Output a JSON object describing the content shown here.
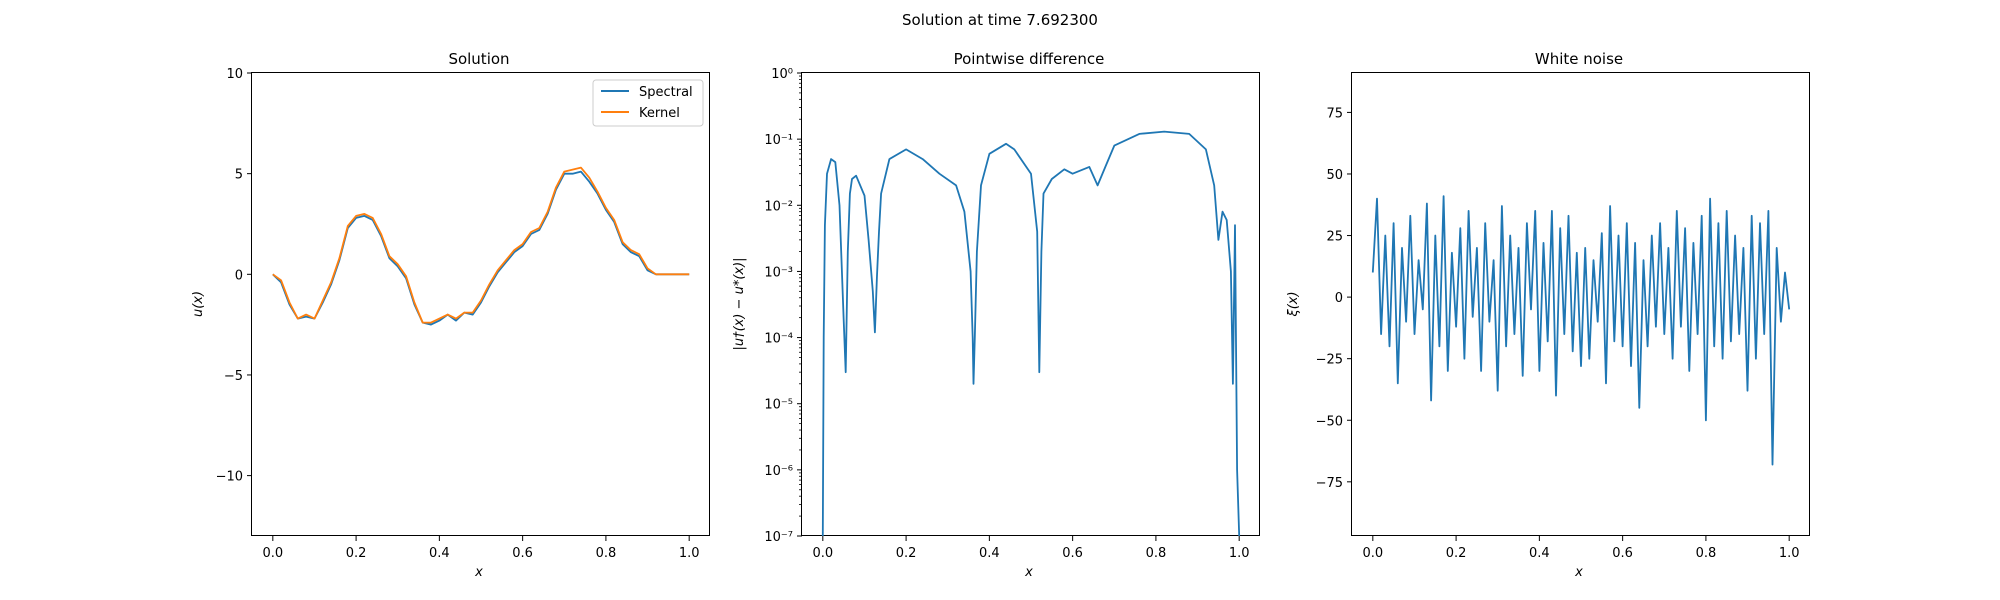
{
  "suptitle": "Solution at time 7.692300",
  "chart_data": [
    {
      "type": "line",
      "title": "Solution",
      "xlabel": "x",
      "ylabel": "u(x)",
      "xlim": [
        -0.05,
        1.05
      ],
      "ylim": [
        -13.0,
        10.0
      ],
      "x_ticks": [
        0.0,
        0.2,
        0.4,
        0.6,
        0.8,
        1.0
      ],
      "x_tick_labels": [
        "0.0",
        "0.2",
        "0.4",
        "0.6",
        "0.8",
        "1.0"
      ],
      "y_ticks": [
        10,
        5,
        0,
        -5,
        -10
      ],
      "y_tick_labels": [
        "10",
        "5",
        "0",
        "−5",
        "−10"
      ],
      "grid": false,
      "legend": {
        "position": "top-right",
        "entries": [
          "Spectral",
          "Kernel"
        ]
      },
      "x": [
        0.0,
        0.02,
        0.04,
        0.06,
        0.08,
        0.1,
        0.12,
        0.14,
        0.16,
        0.18,
        0.2,
        0.22,
        0.24,
        0.26,
        0.28,
        0.3,
        0.32,
        0.34,
        0.36,
        0.38,
        0.4,
        0.42,
        0.44,
        0.46,
        0.48,
        0.5,
        0.52,
        0.54,
        0.56,
        0.58,
        0.6,
        0.62,
        0.64,
        0.66,
        0.68,
        0.7,
        0.72,
        0.74,
        0.76,
        0.78,
        0.8,
        0.82,
        0.84,
        0.86,
        0.88,
        0.9,
        0.92,
        0.94,
        0.96,
        0.98,
        1.0
      ],
      "series": [
        {
          "name": "Spectral",
          "color": "#1f77b4",
          "values": [
            0.0,
            -0.4,
            -1.5,
            -2.2,
            -2.1,
            -2.2,
            -1.4,
            -0.5,
            0.7,
            2.3,
            2.8,
            2.9,
            2.7,
            1.9,
            0.8,
            0.4,
            -0.2,
            -1.5,
            -2.4,
            -2.5,
            -2.3,
            -2.0,
            -2.3,
            -1.9,
            -2.0,
            -1.4,
            -0.6,
            0.1,
            0.6,
            1.1,
            1.4,
            2.0,
            2.2,
            3.0,
            4.2,
            5.0,
            5.0,
            5.1,
            4.6,
            4.0,
            3.2,
            2.6,
            1.5,
            1.1,
            0.9,
            0.2,
            0.0,
            0.0,
            0.0,
            0.0,
            0.0
          ]
        },
        {
          "name": "Kernel",
          "color": "#ff7f0e",
          "values": [
            0.0,
            -0.3,
            -1.4,
            -2.2,
            -2.0,
            -2.2,
            -1.3,
            -0.4,
            0.8,
            2.4,
            2.9,
            3.0,
            2.8,
            2.0,
            0.9,
            0.5,
            -0.1,
            -1.4,
            -2.4,
            -2.4,
            -2.2,
            -2.0,
            -2.2,
            -1.9,
            -1.9,
            -1.3,
            -0.5,
            0.2,
            0.7,
            1.2,
            1.5,
            2.1,
            2.3,
            3.1,
            4.3,
            5.1,
            5.2,
            5.3,
            4.8,
            4.1,
            3.3,
            2.7,
            1.6,
            1.2,
            1.0,
            0.3,
            0.0,
            0.0,
            0.0,
            0.0,
            0.0
          ]
        }
      ]
    },
    {
      "type": "line",
      "title": "Pointwise difference",
      "xlabel": "x",
      "ylabel": "|u†(x) − u*(x)|",
      "yscale": "log",
      "xlim": [
        -0.05,
        1.05
      ],
      "ylim": [
        1e-07,
        1
      ],
      "x_ticks": [
        0.0,
        0.2,
        0.4,
        0.6,
        0.8,
        1.0
      ],
      "x_tick_labels": [
        "0.0",
        "0.2",
        "0.4",
        "0.6",
        "0.8",
        "1.0"
      ],
      "y_ticks": [
        1,
        0.1,
        0.01,
        0.001,
        0.0001,
        1e-05,
        1e-06,
        1e-07
      ],
      "y_tick_labels": [
        "10⁰",
        "10⁻¹",
        "10⁻²",
        "10⁻³",
        "10⁻⁴",
        "10⁻⁵",
        "10⁻⁶",
        "10⁻⁷"
      ],
      "grid": false,
      "series": [
        {
          "name": "",
          "color": "#1f77b4",
          "x": [
            0.0,
            0.002,
            0.005,
            0.01,
            0.02,
            0.03,
            0.04,
            0.05,
            0.055,
            0.06,
            0.065,
            0.07,
            0.08,
            0.1,
            0.11,
            0.12,
            0.125,
            0.13,
            0.135,
            0.14,
            0.16,
            0.2,
            0.24,
            0.28,
            0.32,
            0.34,
            0.355,
            0.36,
            0.362,
            0.365,
            0.37,
            0.38,
            0.4,
            0.44,
            0.46,
            0.5,
            0.515,
            0.52,
            0.525,
            0.53,
            0.55,
            0.58,
            0.6,
            0.64,
            0.66,
            0.68,
            0.7,
            0.76,
            0.82,
            0.88,
            0.92,
            0.94,
            0.95,
            0.96,
            0.97,
            0.98,
            0.985,
            0.99,
            0.995,
            1.0
          ],
          "values": [
            1e-07,
            0.0001,
            0.005,
            0.03,
            0.05,
            0.045,
            0.01,
            0.0002,
            3e-05,
            0.002,
            0.015,
            0.025,
            0.028,
            0.014,
            0.003,
            0.0005,
            0.00012,
            0.0008,
            0.004,
            0.015,
            0.05,
            0.07,
            0.05,
            0.03,
            0.02,
            0.008,
            0.001,
            0.0001,
            2e-05,
            0.0001,
            0.002,
            0.02,
            0.06,
            0.085,
            0.07,
            0.03,
            0.004,
            3e-05,
            0.002,
            0.015,
            0.025,
            0.035,
            0.03,
            0.038,
            0.02,
            0.04,
            0.08,
            0.12,
            0.13,
            0.12,
            0.07,
            0.02,
            0.003,
            0.008,
            0.006,
            0.001,
            2e-05,
            0.005,
            1e-06,
            1e-07
          ]
        }
      ]
    },
    {
      "type": "line",
      "title": "White noise",
      "xlabel": "x",
      "ylabel": "ξ(x)",
      "xlim": [
        -0.05,
        1.05
      ],
      "ylim": [
        -97,
        91
      ],
      "x_ticks": [
        0.0,
        0.2,
        0.4,
        0.6,
        0.8,
        1.0
      ],
      "x_tick_labels": [
        "0.0",
        "0.2",
        "0.4",
        "0.6",
        "0.8",
        "1.0"
      ],
      "y_ticks": [
        75,
        50,
        25,
        0,
        -25,
        -50,
        -75
      ],
      "y_tick_labels": [
        "75",
        "50",
        "25",
        "0",
        "−25",
        "−50",
        "−75"
      ],
      "grid": false,
      "series": [
        {
          "name": "",
          "color": "#1f77b4",
          "x": [
            0.0,
            0.01,
            0.02,
            0.03,
            0.04,
            0.05,
            0.06,
            0.07,
            0.08,
            0.09,
            0.1,
            0.11,
            0.12,
            0.13,
            0.14,
            0.15,
            0.16,
            0.17,
            0.18,
            0.19,
            0.2,
            0.21,
            0.22,
            0.23,
            0.24,
            0.25,
            0.26,
            0.27,
            0.28,
            0.29,
            0.3,
            0.31,
            0.32,
            0.33,
            0.34,
            0.35,
            0.36,
            0.37,
            0.38,
            0.39,
            0.4,
            0.41,
            0.42,
            0.43,
            0.44,
            0.45,
            0.46,
            0.47,
            0.48,
            0.49,
            0.5,
            0.51,
            0.52,
            0.53,
            0.54,
            0.55,
            0.56,
            0.57,
            0.58,
            0.59,
            0.6,
            0.61,
            0.62,
            0.63,
            0.64,
            0.65,
            0.66,
            0.67,
            0.68,
            0.69,
            0.7,
            0.71,
            0.72,
            0.73,
            0.74,
            0.75,
            0.76,
            0.77,
            0.78,
            0.79,
            0.8,
            0.81,
            0.82,
            0.83,
            0.84,
            0.85,
            0.86,
            0.87,
            0.88,
            0.89,
            0.9,
            0.91,
            0.92,
            0.93,
            0.94,
            0.95,
            0.96,
            0.97,
            0.98,
            0.99,
            1.0
          ],
          "values": [
            10,
            40,
            -15,
            25,
            -20,
            30,
            -35,
            20,
            -10,
            33,
            -15,
            15,
            -5,
            38,
            -42,
            25,
            -20,
            41,
            -30,
            18,
            -12,
            28,
            -25,
            35,
            -8,
            20,
            -30,
            30,
            -10,
            15,
            -38,
            37,
            -20,
            25,
            -15,
            20,
            -32,
            30,
            -5,
            35,
            -30,
            22,
            -18,
            35,
            -40,
            28,
            -15,
            33,
            -22,
            18,
            -28,
            20,
            -25,
            15,
            -10,
            26,
            -35,
            37,
            -18,
            25,
            -20,
            30,
            -28,
            22,
            -45,
            15,
            -20,
            25,
            -12,
            30,
            -15,
            20,
            -25,
            35,
            -12,
            28,
            -30,
            22,
            -15,
            33,
            -50,
            40,
            -20,
            30,
            -25,
            35,
            -18,
            25,
            -15,
            20,
            -38,
            33,
            -25,
            30,
            -15,
            35,
            -68,
            20,
            -10,
            10,
            -5
          ]
        }
      ]
    }
  ]
}
